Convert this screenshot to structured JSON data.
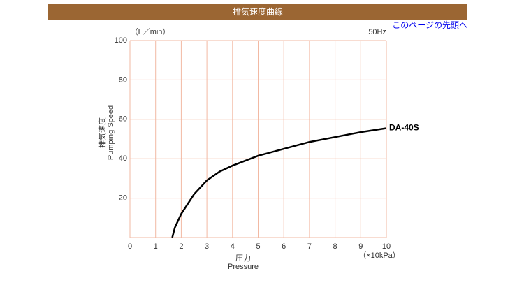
{
  "header": {
    "title": "排気速度曲線",
    "link": "このページの先頭へ"
  },
  "chart_data": {
    "type": "line",
    "y_unit": "（L／min）",
    "note": "50Hz",
    "x_unit": "（×10kPa）",
    "y_label": "排気速度",
    "y_label_en": "Pumping Speed",
    "x_label": "圧力",
    "x_label_en": "Pressure",
    "xlim": [
      0,
      10
    ],
    "xticks": [
      0,
      1,
      2,
      3,
      4,
      5,
      6,
      7,
      8,
      9,
      10
    ],
    "ylim": [
      0,
      100
    ],
    "yticks": [
      20,
      40,
      60,
      80,
      100
    ],
    "grid": true,
    "series": [
      {
        "name": "DA-40S",
        "color": "#000000",
        "x": [
          1.65,
          1.75,
          2,
          2.5,
          3,
          3.5,
          4,
          5,
          6,
          7,
          8,
          9,
          10
        ],
        "values": [
          0,
          5,
          12,
          22,
          29,
          33.5,
          36.5,
          41.5,
          45,
          48.5,
          51,
          53.5,
          55.5
        ]
      }
    ]
  }
}
